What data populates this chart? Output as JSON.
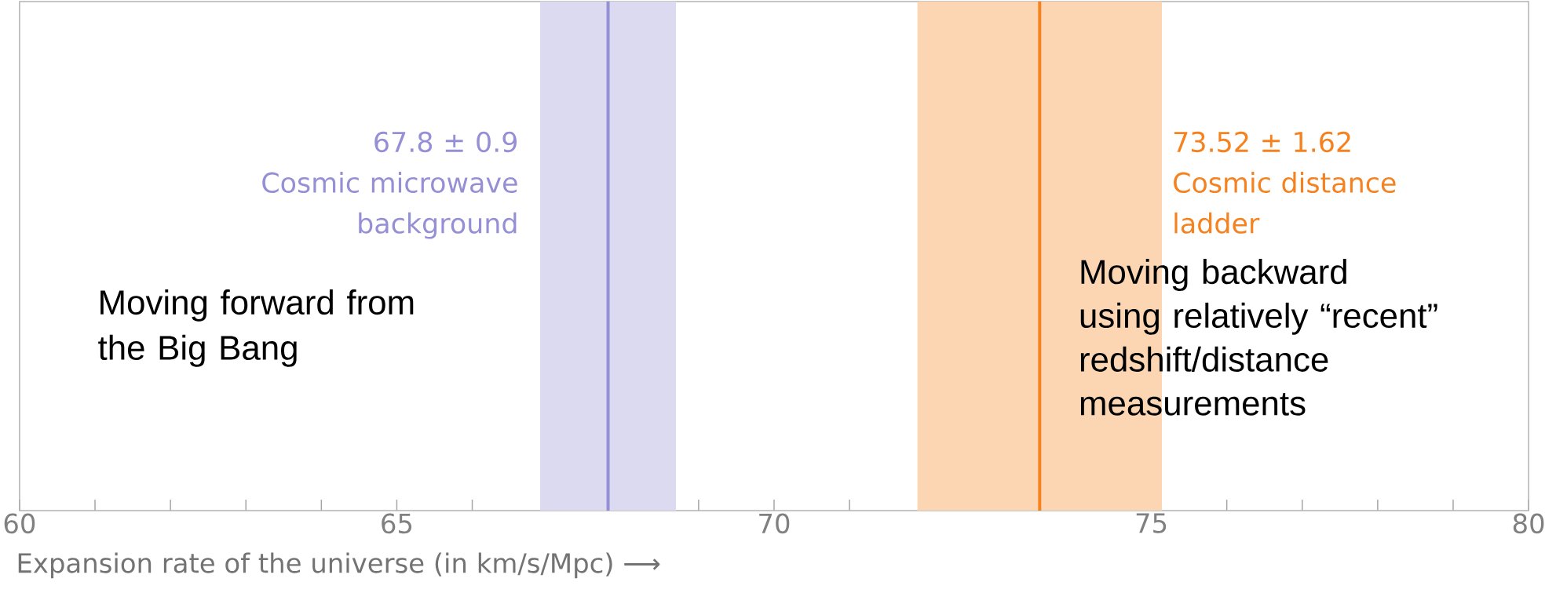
{
  "chart_data": {
    "type": "bar",
    "orientation": "horizontal",
    "xlabel": "Expansion rate of the universe (in km/s/Mpc) ⟶",
    "xlim": [
      60,
      80
    ],
    "xticks": [
      60,
      {
        "value": 61,
        "label": null
      },
      {
        "value": 62,
        "label": null
      },
      {
        "value": 63,
        "label": null
      },
      {
        "value": 64,
        "label": null
      },
      65,
      {
        "value": 66,
        "label": null
      },
      {
        "value": 67,
        "label": null
      },
      {
        "value": 68,
        "label": null
      },
      {
        "value": 69,
        "label": null
      },
      70,
      {
        "value": 71,
        "label": null
      },
      {
        "value": 72,
        "label": null
      },
      {
        "value": 73,
        "label": null
      },
      {
        "value": 74,
        "label": null
      },
      75,
      {
        "value": 76,
        "label": null
      },
      {
        "value": 77,
        "label": null
      },
      {
        "value": 78,
        "label": null
      },
      {
        "value": 79,
        "label": null
      },
      80
    ],
    "categories": [
      null
    ],
    "series": [
      {
        "color": "#dcdaf1",
        "values": [
          1.8
        ],
        "base": [
          66.9
        ]
      },
      {
        "color": "#fcd6b3",
        "values": [
          3.24
        ],
        "base": [
          71.9
        ]
      }
    ],
    "ref_lines": [
      {
        "axis": "x",
        "value": 67.8,
        "label": "67.8 ± 0.9",
        "color": "#9590d6"
      },
      {
        "axis": "x",
        "value": 73.52,
        "label": "73.52 ± 1.62",
        "color": "#f5821f"
      }
    ],
    "annotations": [
      "Moving forward from the Big Bang",
      "Moving backward using relatively “recent” redshift/distance measurements",
      "Cosmic microwave background",
      "Cosmic distance ladder"
    ]
  }
}
